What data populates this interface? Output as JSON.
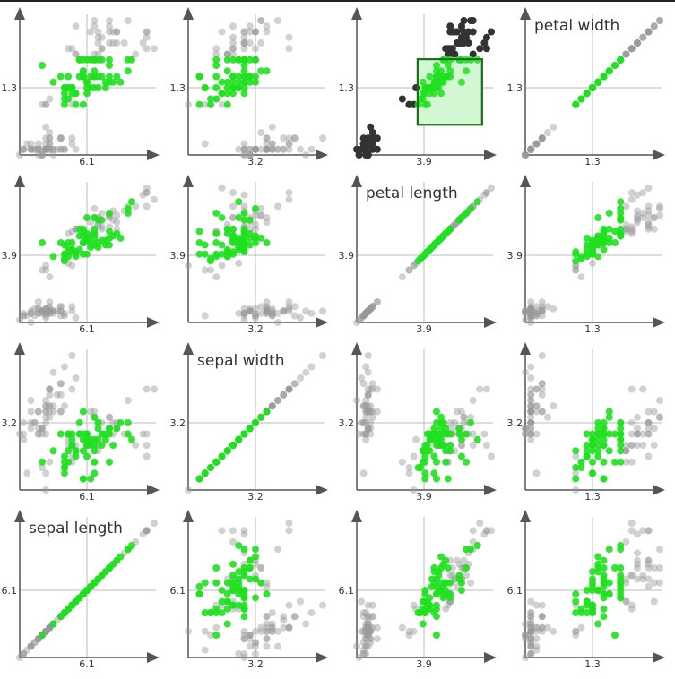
{
  "chart_data": {
    "type": "scatter",
    "layout": "scatter-plot-matrix",
    "variables": [
      "sepal length",
      "sepal width",
      "petal length",
      "petal width"
    ],
    "column_order": [
      "sepal length",
      "sepal width",
      "petal length",
      "petal width"
    ],
    "row_order": [
      "petal width",
      "petal length",
      "sepal width",
      "sepal length"
    ],
    "domains": {
      "sepal length": [
        4.3,
        7.9
      ],
      "sepal width": [
        2.0,
        4.4
      ],
      "petal length": [
        1.0,
        6.9
      ],
      "petal width": [
        0.1,
        2.5
      ]
    },
    "tick_labels": {
      "sepal length": "6.1",
      "sepal width": "3.2",
      "petal length": "3.9",
      "petal width": "1.3"
    },
    "grid": true,
    "brush": {
      "x": "petal length",
      "y": "petal width",
      "x_range": [
        3.67,
        6.5
      ],
      "y_range": [
        0.64,
        1.81
      ]
    },
    "colors": {
      "selected": "#1fe01f",
      "unselected": "#9a9a9a",
      "unselected_in_brushed_panel": "#333333",
      "brush_fill": "#d3f7d3",
      "brush_stroke": "#1a6e1a",
      "axis": "#555555",
      "grid": "#bbbbbb"
    },
    "columns": [
      "sepal length",
      "sepal width",
      "petal length",
      "petal width"
    ],
    "data": [
      [
        5.1,
        3.5,
        1.4,
        0.2
      ],
      [
        4.9,
        3.0,
        1.4,
        0.2
      ],
      [
        4.7,
        3.2,
        1.3,
        0.2
      ],
      [
        4.6,
        3.1,
        1.5,
        0.2
      ],
      [
        5.0,
        3.6,
        1.4,
        0.2
      ],
      [
        5.4,
        3.9,
        1.7,
        0.4
      ],
      [
        4.6,
        3.4,
        1.4,
        0.3
      ],
      [
        5.0,
        3.4,
        1.5,
        0.2
      ],
      [
        4.4,
        2.9,
        1.4,
        0.2
      ],
      [
        4.9,
        3.1,
        1.5,
        0.1
      ],
      [
        5.4,
        3.7,
        1.5,
        0.2
      ],
      [
        4.8,
        3.4,
        1.6,
        0.2
      ],
      [
        4.8,
        3.0,
        1.4,
        0.1
      ],
      [
        4.3,
        3.0,
        1.1,
        0.1
      ],
      [
        5.8,
        4.0,
        1.2,
        0.2
      ],
      [
        5.7,
        4.4,
        1.5,
        0.4
      ],
      [
        5.4,
        3.9,
        1.3,
        0.4
      ],
      [
        5.1,
        3.5,
        1.4,
        0.3
      ],
      [
        5.7,
        3.8,
        1.7,
        0.3
      ],
      [
        5.1,
        3.8,
        1.5,
        0.3
      ],
      [
        5.4,
        3.4,
        1.7,
        0.2
      ],
      [
        5.1,
        3.7,
        1.5,
        0.4
      ],
      [
        4.6,
        3.6,
        1.0,
        0.2
      ],
      [
        5.1,
        3.3,
        1.7,
        0.5
      ],
      [
        4.8,
        3.4,
        1.9,
        0.2
      ],
      [
        5.0,
        3.0,
        1.6,
        0.2
      ],
      [
        5.0,
        3.4,
        1.6,
        0.4
      ],
      [
        5.2,
        3.5,
        1.5,
        0.2
      ],
      [
        5.2,
        3.4,
        1.4,
        0.2
      ],
      [
        4.7,
        3.2,
        1.6,
        0.2
      ],
      [
        4.8,
        3.1,
        1.6,
        0.2
      ],
      [
        5.4,
        3.4,
        1.5,
        0.4
      ],
      [
        5.2,
        4.1,
        1.5,
        0.1
      ],
      [
        5.5,
        4.2,
        1.4,
        0.2
      ],
      [
        4.9,
        3.1,
        1.5,
        0.1
      ],
      [
        5.0,
        3.2,
        1.2,
        0.2
      ],
      [
        5.5,
        3.5,
        1.3,
        0.2
      ],
      [
        4.9,
        3.1,
        1.5,
        0.1
      ],
      [
        4.4,
        3.0,
        1.3,
        0.2
      ],
      [
        5.1,
        3.4,
        1.5,
        0.2
      ],
      [
        5.0,
        3.5,
        1.3,
        0.3
      ],
      [
        4.5,
        2.3,
        1.3,
        0.3
      ],
      [
        4.4,
        3.2,
        1.3,
        0.2
      ],
      [
        5.0,
        3.5,
        1.6,
        0.6
      ],
      [
        5.1,
        3.8,
        1.9,
        0.4
      ],
      [
        4.8,
        3.0,
        1.4,
        0.3
      ],
      [
        5.1,
        3.8,
        1.6,
        0.2
      ],
      [
        4.6,
        3.2,
        1.4,
        0.2
      ],
      [
        5.3,
        3.7,
        1.5,
        0.2
      ],
      [
        5.0,
        3.3,
        1.4,
        0.2
      ],
      [
        7.0,
        3.2,
        4.7,
        1.4
      ],
      [
        6.4,
        3.2,
        4.5,
        1.5
      ],
      [
        6.9,
        3.1,
        4.9,
        1.5
      ],
      [
        5.5,
        2.3,
        4.0,
        1.3
      ],
      [
        6.5,
        2.8,
        4.6,
        1.5
      ],
      [
        5.7,
        2.8,
        4.5,
        1.3
      ],
      [
        6.3,
        3.3,
        4.7,
        1.6
      ],
      [
        4.9,
        2.4,
        3.3,
        1.0
      ],
      [
        6.6,
        2.9,
        4.6,
        1.3
      ],
      [
        5.2,
        2.7,
        3.9,
        1.4
      ],
      [
        5.0,
        2.0,
        3.5,
        1.0
      ],
      [
        5.9,
        3.0,
        4.2,
        1.5
      ],
      [
        6.0,
        2.2,
        4.0,
        1.0
      ],
      [
        6.1,
        2.9,
        4.7,
        1.4
      ],
      [
        5.6,
        2.9,
        3.6,
        1.3
      ],
      [
        6.7,
        3.1,
        4.4,
        1.4
      ],
      [
        5.6,
        3.0,
        4.5,
        1.5
      ],
      [
        5.8,
        2.7,
        4.1,
        1.0
      ],
      [
        6.2,
        2.2,
        4.5,
        1.5
      ],
      [
        5.6,
        2.5,
        3.9,
        1.1
      ],
      [
        5.9,
        3.2,
        4.8,
        1.8
      ],
      [
        6.1,
        2.8,
        4.0,
        1.3
      ],
      [
        6.3,
        2.5,
        4.9,
        1.5
      ],
      [
        6.1,
        2.8,
        4.7,
        1.2
      ],
      [
        6.4,
        2.9,
        4.3,
        1.3
      ],
      [
        6.6,
        3.0,
        4.4,
        1.4
      ],
      [
        6.8,
        2.8,
        4.8,
        1.4
      ],
      [
        6.7,
        3.0,
        5.0,
        1.7
      ],
      [
        6.0,
        2.9,
        4.5,
        1.5
      ],
      [
        5.7,
        2.6,
        3.5,
        1.0
      ],
      [
        5.5,
        2.4,
        3.8,
        1.1
      ],
      [
        5.5,
        2.4,
        3.7,
        1.0
      ],
      [
        5.8,
        2.7,
        3.9,
        1.2
      ],
      [
        6.0,
        2.7,
        5.1,
        1.6
      ],
      [
        5.4,
        3.0,
        4.5,
        1.5
      ],
      [
        6.0,
        3.4,
        4.5,
        1.6
      ],
      [
        6.7,
        3.1,
        4.7,
        1.5
      ],
      [
        6.3,
        2.3,
        4.4,
        1.3
      ],
      [
        5.6,
        3.0,
        4.1,
        1.3
      ],
      [
        5.5,
        2.5,
        4.0,
        1.3
      ],
      [
        5.5,
        2.6,
        4.4,
        1.2
      ],
      [
        6.1,
        3.0,
        4.6,
        1.4
      ],
      [
        5.8,
        2.6,
        4.0,
        1.2
      ],
      [
        5.0,
        2.3,
        3.3,
        1.0
      ],
      [
        5.6,
        2.7,
        4.2,
        1.3
      ],
      [
        5.7,
        3.0,
        4.2,
        1.2
      ],
      [
        5.7,
        2.9,
        4.2,
        1.3
      ],
      [
        6.2,
        2.9,
        4.3,
        1.3
      ],
      [
        5.1,
        2.5,
        3.0,
        1.1
      ],
      [
        5.7,
        2.8,
        4.1,
        1.3
      ],
      [
        6.3,
        3.3,
        6.0,
        2.5
      ],
      [
        5.8,
        2.7,
        5.1,
        1.9
      ],
      [
        7.1,
        3.0,
        5.9,
        2.1
      ],
      [
        6.3,
        2.9,
        5.6,
        1.8
      ],
      [
        6.5,
        3.0,
        5.8,
        2.2
      ],
      [
        7.6,
        3.0,
        6.6,
        2.1
      ],
      [
        4.9,
        2.5,
        4.5,
        1.7
      ],
      [
        7.3,
        2.9,
        6.3,
        1.8
      ],
      [
        6.7,
        2.5,
        5.8,
        1.8
      ],
      [
        7.2,
        3.6,
        6.1,
        2.5
      ],
      [
        6.5,
        3.2,
        5.1,
        2.0
      ],
      [
        6.4,
        2.7,
        5.3,
        1.9
      ],
      [
        6.8,
        3.0,
        5.5,
        2.1
      ],
      [
        5.7,
        2.5,
        5.0,
        2.0
      ],
      [
        5.8,
        2.8,
        5.1,
        2.4
      ],
      [
        6.4,
        3.2,
        5.3,
        2.3
      ],
      [
        6.5,
        3.0,
        5.5,
        1.8
      ],
      [
        7.7,
        3.8,
        6.7,
        2.2
      ],
      [
        7.7,
        2.6,
        6.9,
        2.3
      ],
      [
        6.0,
        2.2,
        5.0,
        1.5
      ],
      [
        6.9,
        3.2,
        5.7,
        2.3
      ],
      [
        5.6,
        2.8,
        4.9,
        2.0
      ],
      [
        7.7,
        2.8,
        6.7,
        2.0
      ],
      [
        6.3,
        2.7,
        4.9,
        1.8
      ],
      [
        6.7,
        3.3,
        5.7,
        2.1
      ],
      [
        7.2,
        3.2,
        6.0,
        1.8
      ],
      [
        6.2,
        2.8,
        4.8,
        1.8
      ],
      [
        6.1,
        3.0,
        4.9,
        1.8
      ],
      [
        6.4,
        2.8,
        5.6,
        2.1
      ],
      [
        7.2,
        3.0,
        5.8,
        1.6
      ],
      [
        7.4,
        2.8,
        6.1,
        1.9
      ],
      [
        7.9,
        3.8,
        6.4,
        2.0
      ],
      [
        6.4,
        2.8,
        5.6,
        2.2
      ],
      [
        6.3,
        2.8,
        5.1,
        1.5
      ],
      [
        6.1,
        2.6,
        5.6,
        1.4
      ],
      [
        7.7,
        3.0,
        6.1,
        2.3
      ],
      [
        6.3,
        3.4,
        5.6,
        2.4
      ],
      [
        6.4,
        3.1,
        5.5,
        1.8
      ],
      [
        6.0,
        3.0,
        4.8,
        1.8
      ],
      [
        6.9,
        3.1,
        5.4,
        2.1
      ],
      [
        6.7,
        3.1,
        5.6,
        2.4
      ],
      [
        6.9,
        3.1,
        5.1,
        2.3
      ],
      [
        5.8,
        2.7,
        5.1,
        1.9
      ],
      [
        6.8,
        3.2,
        5.9,
        2.3
      ],
      [
        6.7,
        3.3,
        5.7,
        2.5
      ],
      [
        6.7,
        3.0,
        5.2,
        2.3
      ],
      [
        6.3,
        2.5,
        5.0,
        1.9
      ],
      [
        6.5,
        3.0,
        5.2,
        2.0
      ],
      [
        6.2,
        3.4,
        5.4,
        2.3
      ],
      [
        5.9,
        3.0,
        5.1,
        1.8
      ]
    ]
  }
}
